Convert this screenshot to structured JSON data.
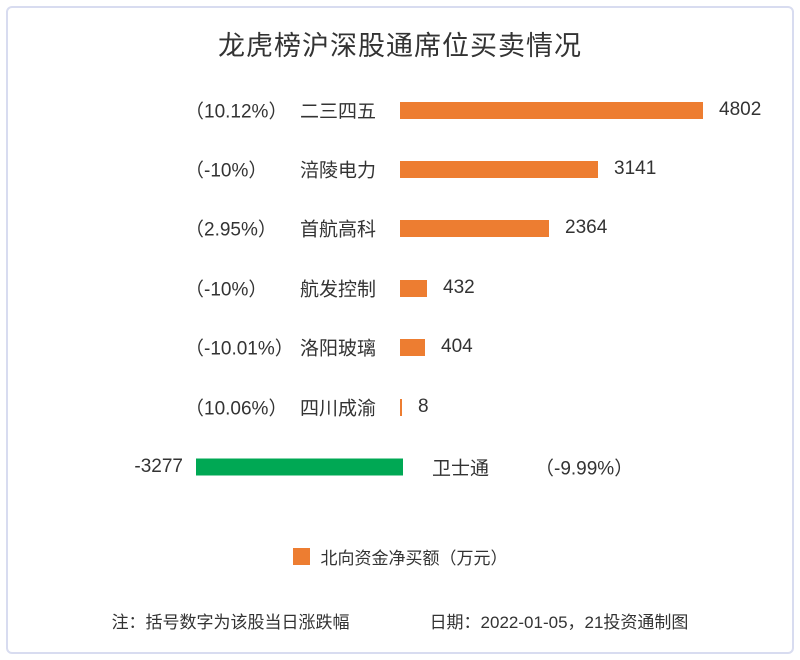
{
  "chart_data": {
    "type": "bar",
    "orientation": "horizontal",
    "title": "龙虎榜沪深股通席位买卖情况",
    "legend_label": "北向资金净买额（万元）",
    "unit": "万元",
    "value_axis_visible": false,
    "rows": [
      {
        "pct": "（10.12%）",
        "name": "二三四五",
        "value": 4802
      },
      {
        "pct": "（-10%）",
        "name": "涪陵电力",
        "value": 3141
      },
      {
        "pct": "（2.95%）",
        "name": "首航高科",
        "value": 2364
      },
      {
        "pct": "（-10%）",
        "name": "航发控制",
        "value": 432
      },
      {
        "pct": "（-10.01%）",
        "name": "洛阳玻璃",
        "value": 404
      },
      {
        "pct": "（10.06%）",
        "name": "四川成渝",
        "value": 8
      }
    ],
    "negative_row": {
      "value": -3277,
      "name": "卫士通",
      "pct": "（-9.99%）"
    },
    "colors": {
      "positive": "#ED7D31",
      "negative": "#00A854"
    }
  },
  "footer": {
    "note": "注：括号数字为该股当日涨跌幅",
    "date": "日期：2022-01-05，21投资通制图"
  }
}
